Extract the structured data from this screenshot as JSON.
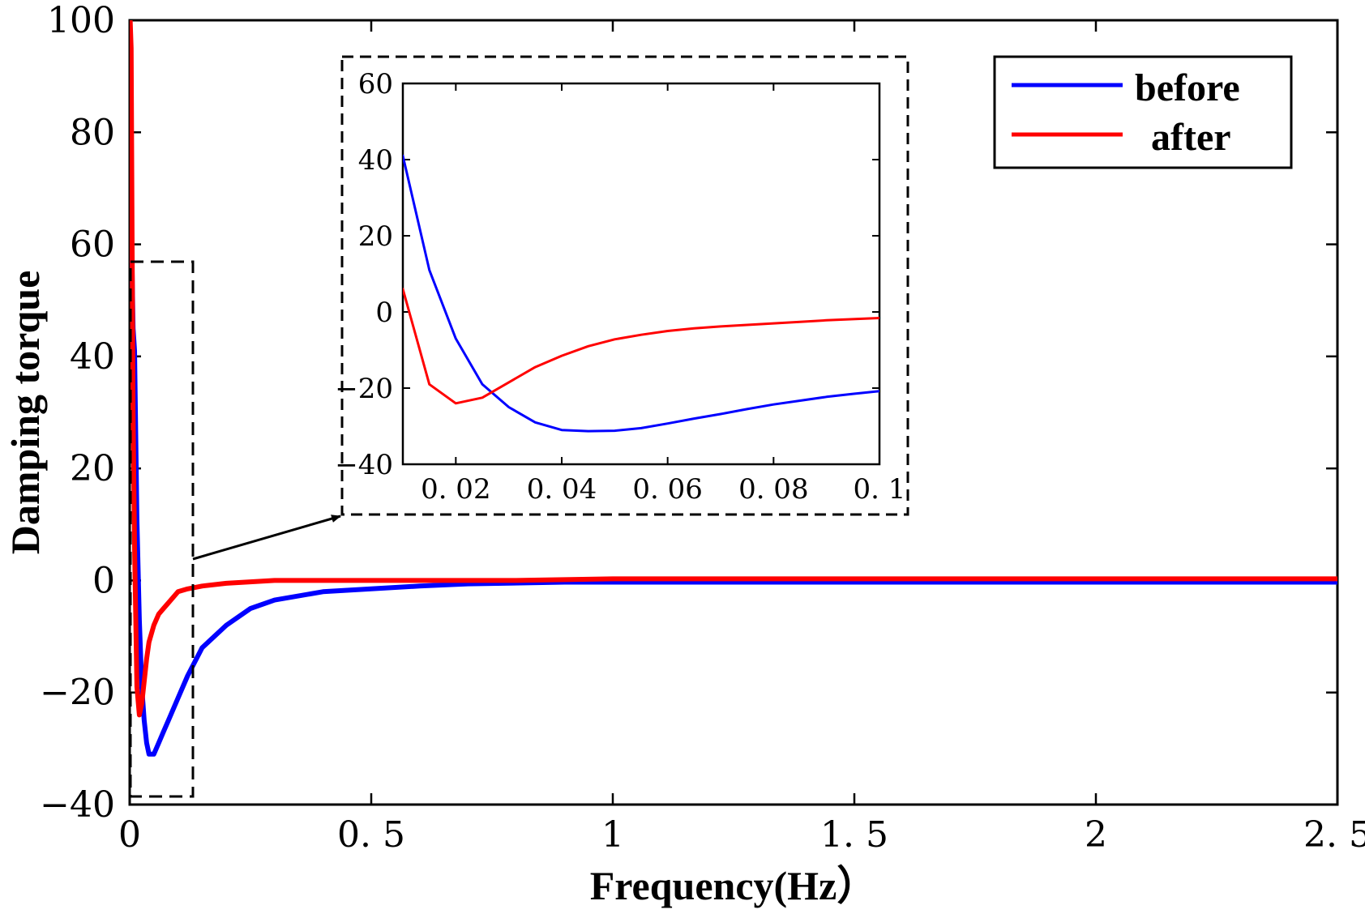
{
  "chart_data": [
    {
      "type": "line",
      "title": "",
      "xlabel": "Frequency(Hz）",
      "ylabel": "Damping torque",
      "xlim": [
        0,
        2.5
      ],
      "ylim": [
        -40,
        100
      ],
      "xticks": [
        0,
        0.5,
        1,
        1.5,
        2,
        2.5
      ],
      "xtick_labels": [
        "0",
        "0. 5",
        "1",
        "1. 5",
        "2",
        "2. 5"
      ],
      "yticks": [
        -40,
        -20,
        0,
        20,
        40,
        60,
        80,
        100
      ],
      "ytick_labels": [
        "−40",
        "−20",
        "0",
        "20",
        "40",
        "60",
        "80",
        "100"
      ],
      "grid": false,
      "legend": "top-right",
      "series": [
        {
          "name": "before",
          "color": "#0000ff",
          "x": [
            0.001,
            0.003,
            0.005,
            0.007,
            0.01,
            0.015,
            0.02,
            0.025,
            0.03,
            0.035,
            0.04,
            0.05,
            0.06,
            0.07,
            0.08,
            0.1,
            0.12,
            0.15,
            0.2,
            0.25,
            0.3,
            0.4,
            0.5,
            0.6,
            0.7,
            0.9,
            1.0,
            1.5,
            2.0,
            2.5
          ],
          "y": [
            75,
            65,
            55,
            45,
            41,
            11,
            -7,
            -19,
            -25,
            -29,
            -31,
            -31,
            -29,
            -27,
            -25,
            -21,
            -17,
            -12,
            -8,
            -5,
            -3.5,
            -2,
            -1.5,
            -1,
            -0.6,
            -0.3,
            -0.3,
            -0.3,
            -0.3,
            -0.3
          ]
        },
        {
          "name": "after",
          "color": "#ff0000",
          "x": [
            0.001,
            0.003,
            0.005,
            0.007,
            0.01,
            0.015,
            0.02,
            0.025,
            0.03,
            0.035,
            0.04,
            0.05,
            0.06,
            0.07,
            0.08,
            0.1,
            0.12,
            0.15,
            0.2,
            0.3,
            0.5,
            0.8,
            1.0,
            1.5,
            2.0,
            2.5
          ],
          "y": [
            100,
            95,
            60,
            30,
            6,
            -19,
            -24,
            -22,
            -18,
            -14,
            -11,
            -8,
            -6,
            -5,
            -4,
            -2,
            -1.5,
            -1,
            -0.5,
            0,
            0,
            0,
            0.3,
            0.3,
            0.3,
            0.3
          ]
        }
      ],
      "legend_entries": [
        "before",
        "after"
      ]
    },
    {
      "type": "line",
      "title": "",
      "role": "inset (zoom of the dashed region near 0 Hz)",
      "xlim": [
        0.01,
        0.1
      ],
      "ylim": [
        -40,
        60
      ],
      "xticks": [
        0.02,
        0.04,
        0.06,
        0.08,
        0.1
      ],
      "xtick_labels": [
        "0. 02",
        "0. 04",
        "0. 06",
        "0. 08",
        "0. 1"
      ],
      "yticks": [
        -40,
        -20,
        0,
        20,
        40,
        60
      ],
      "ytick_labels": [
        "−40",
        "−20",
        "0",
        "20",
        "40",
        "60"
      ],
      "grid": false,
      "series": [
        {
          "name": "before",
          "color": "#0000ff",
          "x": [
            0.01,
            0.015,
            0.02,
            0.025,
            0.03,
            0.035,
            0.04,
            0.045,
            0.05,
            0.055,
            0.06,
            0.065,
            0.07,
            0.075,
            0.08,
            0.085,
            0.09,
            0.095,
            0.1
          ],
          "y": [
            41,
            11,
            -7,
            -19,
            -25,
            -29,
            -31,
            -31.3,
            -31.2,
            -30.5,
            -29.3,
            -28,
            -26.8,
            -25.5,
            -24.3,
            -23.3,
            -22.3,
            -21.5,
            -20.8
          ]
        },
        {
          "name": "after",
          "color": "#ff0000",
          "x": [
            0.01,
            0.015,
            0.02,
            0.025,
            0.03,
            0.035,
            0.04,
            0.045,
            0.05,
            0.055,
            0.06,
            0.065,
            0.07,
            0.075,
            0.08,
            0.085,
            0.09,
            0.095,
            0.1
          ],
          "y": [
            6,
            -19,
            -24,
            -22.5,
            -18.5,
            -14.5,
            -11.5,
            -9,
            -7.2,
            -6,
            -5,
            -4.3,
            -3.8,
            -3.4,
            -3,
            -2.6,
            -2.2,
            -1.9,
            -1.6
          ]
        }
      ]
    }
  ]
}
